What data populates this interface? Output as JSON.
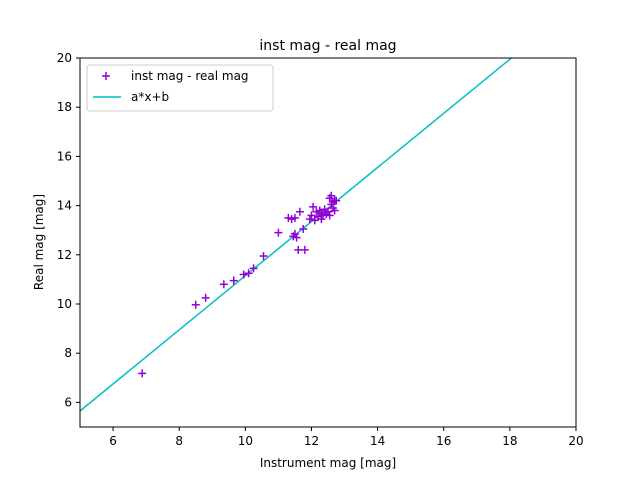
{
  "chart_data": {
    "type": "scatter",
    "title": "inst mag - real mag",
    "xlabel": "Instrument mag [mag]",
    "ylabel": "Real mag [mag]",
    "xlim": [
      5,
      20
    ],
    "ylim": [
      5,
      20
    ],
    "xticks": [
      6,
      8,
      10,
      12,
      14,
      16,
      18,
      20
    ],
    "yticks": [
      6,
      8,
      10,
      12,
      14,
      16,
      18,
      20
    ],
    "grid": false,
    "legend_position": "top-left",
    "series": [
      {
        "name": "inst mag - real mag",
        "kind": "scatter",
        "marker": "+",
        "color": "#9400d3",
        "points": [
          [
            6.88,
            7.18
          ],
          [
            8.5,
            9.97
          ],
          [
            8.8,
            10.25
          ],
          [
            9.35,
            10.8
          ],
          [
            9.65,
            10.95
          ],
          [
            9.95,
            11.2
          ],
          [
            10.1,
            11.25
          ],
          [
            10.25,
            11.45
          ],
          [
            10.55,
            11.95
          ],
          [
            11.0,
            12.9
          ],
          [
            11.3,
            13.5
          ],
          [
            11.4,
            13.45
          ],
          [
            11.45,
            12.75
          ],
          [
            11.5,
            13.5
          ],
          [
            11.5,
            12.85
          ],
          [
            11.55,
            12.7
          ],
          [
            11.6,
            12.2
          ],
          [
            11.65,
            13.75
          ],
          [
            11.75,
            13.05
          ],
          [
            11.8,
            12.2
          ],
          [
            11.95,
            13.45
          ],
          [
            12.0,
            13.6
          ],
          [
            12.05,
            13.95
          ],
          [
            12.1,
            13.4
          ],
          [
            12.15,
            13.75
          ],
          [
            12.2,
            13.55
          ],
          [
            12.25,
            13.8
          ],
          [
            12.3,
            13.45
          ],
          [
            12.3,
            13.7
          ],
          [
            12.35,
            13.6
          ],
          [
            12.4,
            13.85
          ],
          [
            12.45,
            13.65
          ],
          [
            12.5,
            13.75
          ],
          [
            12.55,
            14.3
          ],
          [
            12.55,
            13.6
          ],
          [
            12.6,
            14.4
          ],
          [
            12.6,
            14.05
          ],
          [
            12.65,
            13.9
          ],
          [
            12.65,
            14.15
          ],
          [
            12.7,
            14.2
          ],
          [
            12.7,
            13.8
          ],
          [
            12.75,
            14.2
          ]
        ]
      },
      {
        "name": "a*x+b",
        "kind": "line",
        "color": "#00bfbf",
        "a": 1.1,
        "b": 0.15
      }
    ]
  }
}
